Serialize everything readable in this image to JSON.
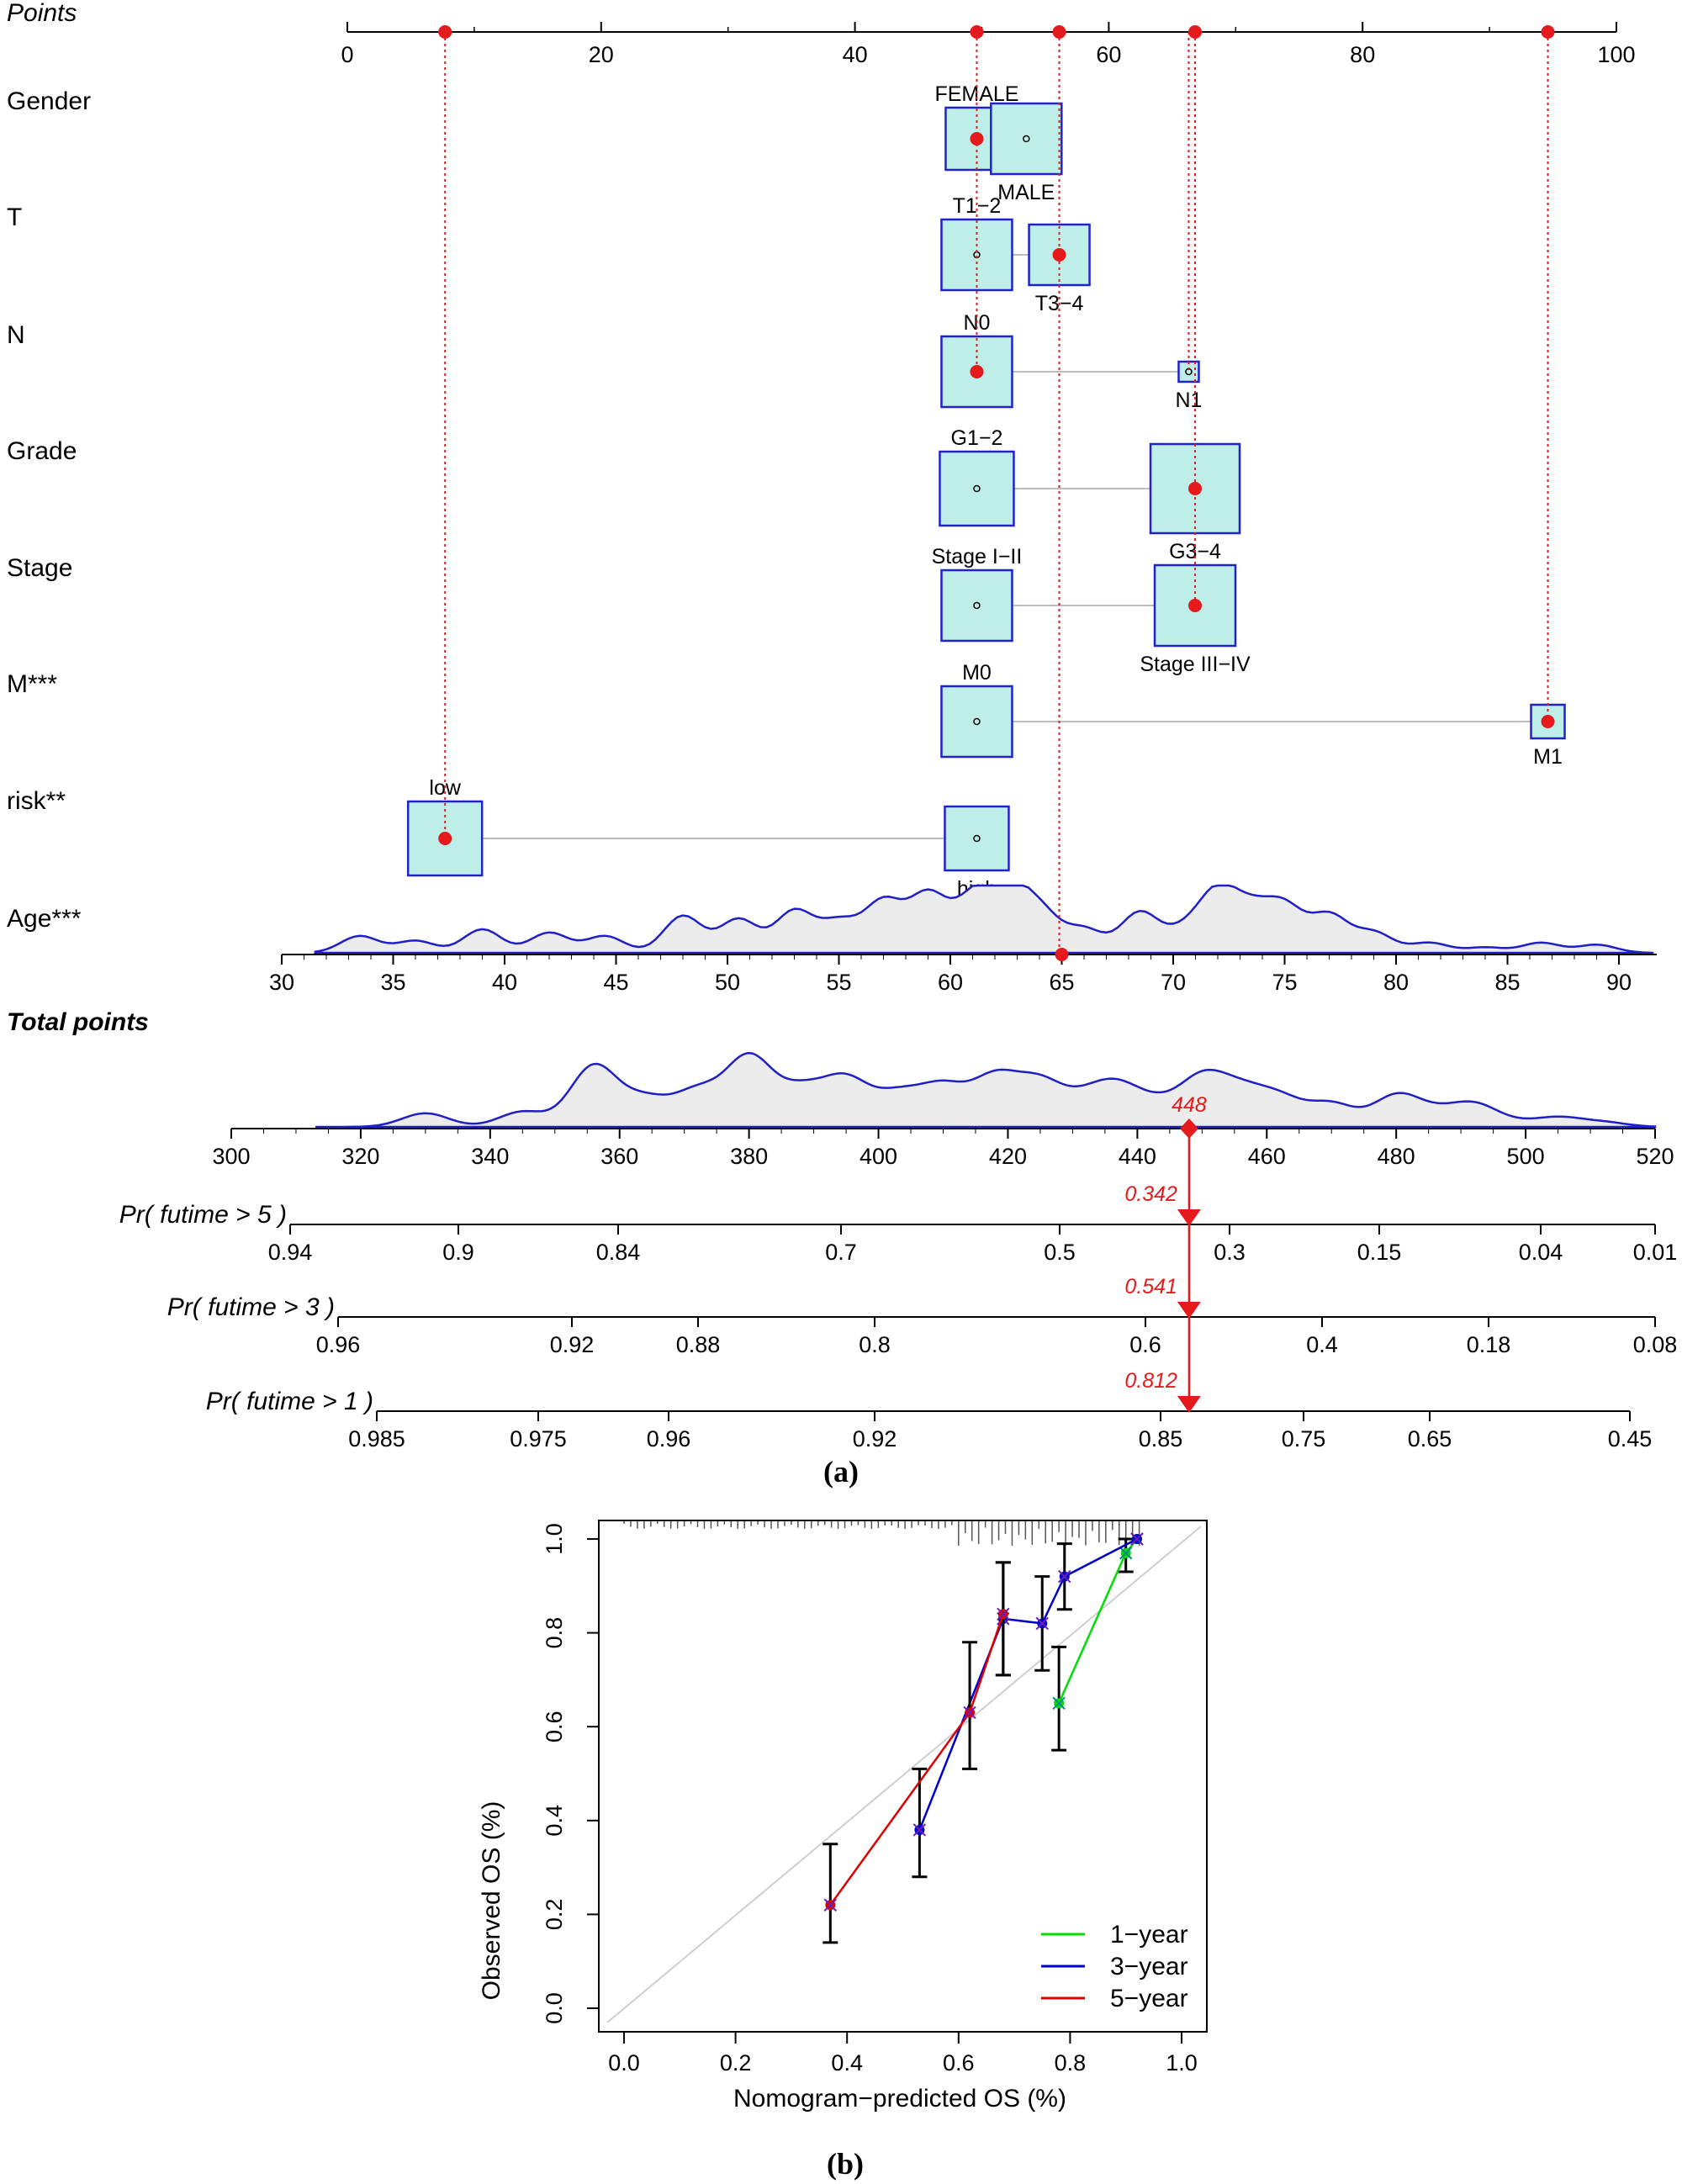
{
  "panel_a": {
    "label": "(a)",
    "points_label": "Points",
    "total_points_label": "Total points",
    "chart_data": {
      "type": "nomogram",
      "points_axis": {
        "min": 0,
        "max": 100,
        "ticks": [
          0,
          20,
          40,
          60,
          80,
          100
        ]
      },
      "selected_points": [
        7.7,
        49.6,
        56.1,
        66.8,
        94.6
      ],
      "variables": [
        {
          "name": "Gender",
          "levels": [
            {
              "label": "FEMALE",
              "points": 49.6,
              "selected": true
            },
            {
              "label": "MALE",
              "points": 53.5,
              "selected": false
            }
          ]
        },
        {
          "name": "T",
          "levels": [
            {
              "label": "T1−2",
              "points": 49.6,
              "selected": false
            },
            {
              "label": "T3−4",
              "points": 56.1,
              "selected": true
            }
          ]
        },
        {
          "name": "N",
          "levels": [
            {
              "label": "N0",
              "points": 49.6,
              "selected": true
            },
            {
              "label": "N1",
              "points": 66.3,
              "selected": false
            }
          ]
        },
        {
          "name": "Grade",
          "levels": [
            {
              "label": "G1−2",
              "points": 49.6,
              "selected": false
            },
            {
              "label": "G3−4",
              "points": 66.8,
              "selected": true
            }
          ]
        },
        {
          "name": "Stage",
          "levels": [
            {
              "label": "Stage I−II",
              "points": 49.6,
              "selected": false
            },
            {
              "label": "Stage III−IV",
              "points": 66.8,
              "selected": true
            }
          ]
        },
        {
          "name": "M***",
          "levels": [
            {
              "label": "M0",
              "points": 49.6,
              "selected": false
            },
            {
              "label": "M1",
              "points": 94.6,
              "selected": true
            }
          ]
        },
        {
          "name": "risk**",
          "levels": [
            {
              "label": "low",
              "points": 7.7,
              "selected": true
            },
            {
              "label": "high",
              "points": 49.6,
              "selected": false
            }
          ]
        }
      ],
      "age_axis": {
        "name": "Age***",
        "ticks": [
          30,
          35,
          40,
          45,
          50,
          55,
          60,
          65,
          70,
          75,
          80,
          85,
          90
        ],
        "selected": 65
      },
      "total_points_axis": {
        "ticks": [
          300,
          320,
          340,
          360,
          380,
          400,
          420,
          440,
          460,
          480,
          500,
          520
        ],
        "value": 448,
        "value_label": "448"
      },
      "probability_axes": [
        {
          "name": "Pr( futime > 5 )",
          "ticks": [
            "0.94",
            "0.9",
            "0.84",
            "0.7",
            "0.5",
            "0.3",
            "0.15",
            "0.04",
            "0.01"
          ],
          "value_label": "0.342"
        },
        {
          "name": "Pr( futime > 3 )",
          "ticks": [
            "0.96",
            "0.92",
            "0.88",
            "0.8",
            "0.6",
            "0.4",
            "0.18",
            "0.08"
          ],
          "value_label": "0.541"
        },
        {
          "name": "Pr( futime > 1 )",
          "ticks": [
            "0.985",
            "0.975",
            "0.96",
            "0.92",
            "0.85",
            "0.75",
            "0.65",
            "0.45"
          ],
          "value_label": "0.812"
        }
      ]
    }
  },
  "panel_b": {
    "label": "(b)",
    "chart_data": {
      "type": "line",
      "xlabel": "Nomogram−predicted OS (%)",
      "ylabel": "Observed OS (%)",
      "xlim": [
        0,
        1
      ],
      "ylim": [
        0,
        1
      ],
      "x_ticks": [
        "0.0",
        "0.2",
        "0.4",
        "0.6",
        "0.8",
        "1.0"
      ],
      "y_ticks": [
        "0.0",
        "0.2",
        "0.4",
        "0.6",
        "0.8",
        "1.0"
      ],
      "series": [
        {
          "name": "1−year",
          "color": "#00dd00",
          "points": [
            {
              "x": 0.78,
              "y": 0.65,
              "lo": 0.55,
              "hi": 0.77
            },
            {
              "x": 0.9,
              "y": 0.97,
              "lo": 0.93,
              "hi": 1.0
            },
            {
              "x": 0.92,
              "y": 1.0,
              "lo": 1.0,
              "hi": 1.0
            }
          ]
        },
        {
          "name": "3−year",
          "color": "#0000cc",
          "points": [
            {
              "x": 0.53,
              "y": 0.38,
              "lo": 0.28,
              "hi": 0.51
            },
            {
              "x": 0.68,
              "y": 0.83,
              "lo": 0.71,
              "hi": 0.95
            },
            {
              "x": 0.75,
              "y": 0.82,
              "lo": 0.72,
              "hi": 0.92
            },
            {
              "x": 0.79,
              "y": 0.92,
              "lo": 0.85,
              "hi": 0.99
            },
            {
              "x": 0.92,
              "y": 1.0,
              "lo": 1.0,
              "hi": 1.0
            }
          ]
        },
        {
          "name": "5−year",
          "color": "#dd0000",
          "points": [
            {
              "x": 0.37,
              "y": 0.22,
              "lo": 0.14,
              "hi": 0.35
            },
            {
              "x": 0.62,
              "y": 0.63,
              "lo": 0.51,
              "hi": 0.78
            },
            {
              "x": 0.68,
              "y": 0.84,
              "lo": 0.71,
              "hi": 0.95
            }
          ]
        }
      ],
      "legend": "bottom-right"
    }
  }
}
